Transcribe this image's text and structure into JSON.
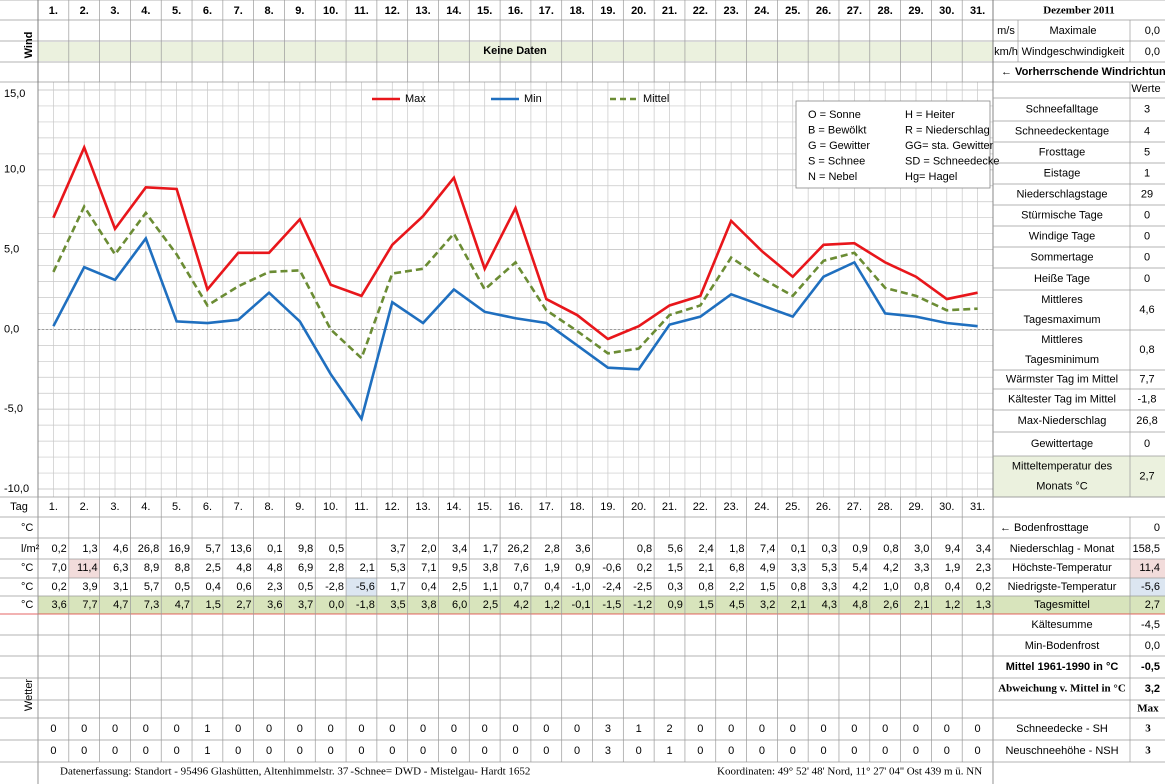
{
  "header": {
    "title": "Dezember 2011"
  },
  "wind": {
    "label": "Wind",
    "units": [
      "m/s",
      "km/h"
    ],
    "desc": [
      "Maximale",
      "Windgeschwindigkeit"
    ],
    "values": [
      "0,0",
      "0,0"
    ],
    "no_data": "Keine Daten",
    "direction": "← Vorherrschende Windrichtung"
  },
  "chart_data": {
    "type": "line",
    "categories": [
      "1.",
      "2.",
      "3.",
      "4.",
      "5.",
      "6.",
      "7.",
      "8.",
      "9.",
      "10.",
      "11.",
      "12.",
      "13.",
      "14.",
      "15.",
      "16.",
      "17.",
      "18.",
      "19.",
      "20.",
      "21.",
      "22.",
      "23.",
      "24.",
      "25.",
      "26.",
      "27.",
      "28.",
      "29.",
      "30.",
      "31."
    ],
    "ylim": [
      -10,
      15
    ],
    "yticks": [
      {
        "value": 15,
        "label": "15,0"
      },
      {
        "value": 10,
        "label": "10,0"
      },
      {
        "value": 5,
        "label": "5,0"
      },
      {
        "value": 0,
        "label": "0,0"
      },
      {
        "value": -5,
        "label": "-5,0"
      },
      {
        "value": -10,
        "label": "-10,0"
      }
    ],
    "grid": true,
    "series": [
      {
        "name": "Max",
        "color": "#e8161b",
        "dashed": false,
        "values": [
          7.0,
          11.4,
          6.3,
          8.9,
          8.8,
          2.5,
          4.8,
          4.8,
          6.9,
          2.8,
          2.1,
          5.3,
          7.1,
          9.5,
          3.8,
          7.6,
          1.9,
          0.9,
          -0.6,
          0.2,
          1.5,
          2.1,
          6.8,
          4.9,
          3.3,
          5.3,
          5.4,
          4.2,
          3.3,
          1.9,
          2.3
        ],
        "value_labels": [
          "7,0",
          "11,4",
          "6,3",
          "8,9",
          "8,8",
          "2,5",
          "4,8",
          "4,8",
          "6,9",
          "2,8",
          "2,1",
          "5,3",
          "7,1",
          "9,5",
          "3,8",
          "7,6",
          "1,9",
          "0,9",
          "-0,6",
          "0,2",
          "1,5",
          "2,1",
          "6,8",
          "4,9",
          "3,3",
          "5,3",
          "5,4",
          "4,2",
          "3,3",
          "1,9",
          "2,3"
        ]
      },
      {
        "name": "Min",
        "color": "#1f6fbf",
        "dashed": false,
        "values": [
          0.2,
          3.9,
          3.1,
          5.7,
          0.5,
          0.4,
          0.6,
          2.3,
          0.5,
          -2.8,
          -5.6,
          1.7,
          0.4,
          2.5,
          1.1,
          0.7,
          0.4,
          -1.0,
          -2.4,
          -2.5,
          0.3,
          0.8,
          2.2,
          1.5,
          0.8,
          3.3,
          4.2,
          1.0,
          0.8,
          0.4,
          0.2
        ],
        "value_labels": [
          "0,2",
          "3,9",
          "3,1",
          "5,7",
          "0,5",
          "0,4",
          "0,6",
          "2,3",
          "0,5",
          "-2,8",
          "-5,6",
          "1,7",
          "0,4",
          "2,5",
          "1,1",
          "0,7",
          "0,4",
          "-1,0",
          "-2,4",
          "-2,5",
          "0,3",
          "0,8",
          "2,2",
          "1,5",
          "0,8",
          "3,3",
          "4,2",
          "1,0",
          "0,8",
          "0,4",
          "0,2"
        ]
      },
      {
        "name": "Mittel",
        "color": "#6b8c34",
        "dashed": true,
        "values": [
          3.6,
          7.7,
          4.7,
          7.3,
          4.7,
          1.5,
          2.7,
          3.6,
          3.7,
          0.0,
          -1.8,
          3.5,
          3.8,
          6.0,
          2.5,
          4.2,
          1.2,
          -0.1,
          -1.5,
          -1.2,
          0.9,
          1.5,
          4.5,
          3.2,
          2.1,
          4.3,
          4.8,
          2.6,
          2.1,
          1.2,
          1.3
        ],
        "value_labels": [
          "3,6",
          "7,7",
          "4,7",
          "7,3",
          "4,7",
          "1,5",
          "2,7",
          "3,6",
          "3,7",
          "0,0",
          "-1,8",
          "3,5",
          "3,8",
          "6,0",
          "2,5",
          "4,2",
          "1,2",
          "-0,1",
          "-1,5",
          "-1,2",
          "0,9",
          "1,5",
          "4,5",
          "3,2",
          "2,1",
          "4,3",
          "4,8",
          "2,6",
          "2,1",
          "1,2",
          "1,3"
        ]
      }
    ],
    "annotations": [
      "O = Sonne",
      "H = Heiter",
      "B = Bewölkt",
      "R = Niederschlag",
      "G = Gewitter",
      "GG= sta. Gewitter",
      "S = Schnee",
      "SD = Schneedecke",
      "N = Nebel",
      "Hg= Hagel"
    ]
  },
  "stats": {
    "header": "Werte",
    "rows": [
      {
        "label": [
          "Schneefalltage"
        ],
        "value": "3"
      },
      {
        "label": [
          "Schneedeckentage"
        ],
        "value": "4"
      },
      {
        "label": [
          "Frosttage"
        ],
        "value": "5"
      },
      {
        "label": [
          "Eistage"
        ],
        "value": "1"
      },
      {
        "label": [
          "Niederschlagstage"
        ],
        "value": "29"
      },
      {
        "label": [
          "Stürmische Tage"
        ],
        "value": "0"
      },
      {
        "label": [
          "Windige Tage"
        ],
        "value": "0"
      },
      {
        "label": [
          "Sommertage"
        ],
        "value": "0"
      },
      {
        "label": [
          "Heiße Tage"
        ],
        "value": "0"
      },
      {
        "label": [
          "Mittleres",
          "Tagesmaximum"
        ],
        "value": "4,6"
      },
      {
        "label": [
          "Mittleres",
          "Tagesminimum"
        ],
        "value": "0,8"
      },
      {
        "label": [
          "Wärmster Tag im Mittel"
        ],
        "value": "7,7"
      },
      {
        "label": [
          "Kältester Tag im Mittel"
        ],
        "value": "-1,8"
      },
      {
        "label": [
          "Max-Niederschlag"
        ],
        "value": "26,8"
      },
      {
        "label": [
          "Gewittertage"
        ],
        "value": "0"
      },
      {
        "label": [
          "Mitteltemperatur des",
          "Monats °C"
        ],
        "value": "2,7"
      }
    ]
  },
  "table": {
    "tag_label": "Tag",
    "units": [
      "°C",
      "l/m²",
      "°C",
      "°C",
      "°C"
    ],
    "precip": [
      "0,2",
      "1,3",
      "4,6",
      "26,8",
      "16,9",
      "5,7",
      "13,6",
      "0,1",
      "9,8",
      "0,5",
      null,
      "3,7",
      "2,0",
      "3,4",
      "1,7",
      "26,2",
      "2,8",
      "3,6",
      null,
      "0,8",
      "5,6",
      "2,4",
      "1,8",
      "7,4",
      "0,1",
      "0,3",
      "0,9",
      "0,8",
      "3,0",
      "9,4",
      "3,4"
    ],
    "side": [
      {
        "label": "← Bodenfrosttage",
        "value": "0"
      },
      {
        "label": "Niederschlag - Monat",
        "value": "158,5"
      },
      {
        "label": "Höchste-Temperatur",
        "value": "11,4"
      },
      {
        "label": "Niedrigste-Temperatur",
        "value": "-5,6"
      },
      {
        "label": "Tagesmittel",
        "value": "2,7"
      },
      {
        "label": "Kältesumme",
        "value": "-4,5"
      },
      {
        "label": "Min-Bodenfrost",
        "value": "0,0"
      },
      {
        "label": "Mittel 1961-1990 in °C",
        "value": "-0,5"
      },
      {
        "label": "Abweichung v. Mittel in °C",
        "value": "3,2"
      }
    ],
    "weather_label": "Wetter",
    "max_label": "Max",
    "snow": [
      {
        "label": "Schneedecke -  SH",
        "values": [
          "0",
          "0",
          "0",
          "0",
          "0",
          "1",
          "0",
          "0",
          "0",
          "0",
          "0",
          "0",
          "0",
          "0",
          "0",
          "0",
          "0",
          "0",
          "3",
          "1",
          "2",
          "0",
          "0",
          "0",
          "0",
          "0",
          "0",
          "0",
          "0",
          "0",
          "0"
        ],
        "max": "3"
      },
      {
        "label": "Neuschneehöhe - NSH",
        "values": [
          "0",
          "0",
          "0",
          "0",
          "0",
          "1",
          "0",
          "0",
          "0",
          "0",
          "0",
          "0",
          "0",
          "0",
          "0",
          "0",
          "0",
          "0",
          "3",
          "0",
          "1",
          "0",
          "0",
          "0",
          "0",
          "0",
          "0",
          "0",
          "0",
          "0",
          "0"
        ],
        "max": "3"
      }
    ]
  },
  "footer": {
    "left": "Datenerfassung:  Standort -  95496  Glashütten, Altenhimmelstr. 37",
    "source": " -Schnee= DWD - Mistelgau- Hardt 1652",
    "right": "Koordinaten:  49° 52' 48' Nord,   11° 27' 04'' Ost   439 m ü. NN"
  }
}
